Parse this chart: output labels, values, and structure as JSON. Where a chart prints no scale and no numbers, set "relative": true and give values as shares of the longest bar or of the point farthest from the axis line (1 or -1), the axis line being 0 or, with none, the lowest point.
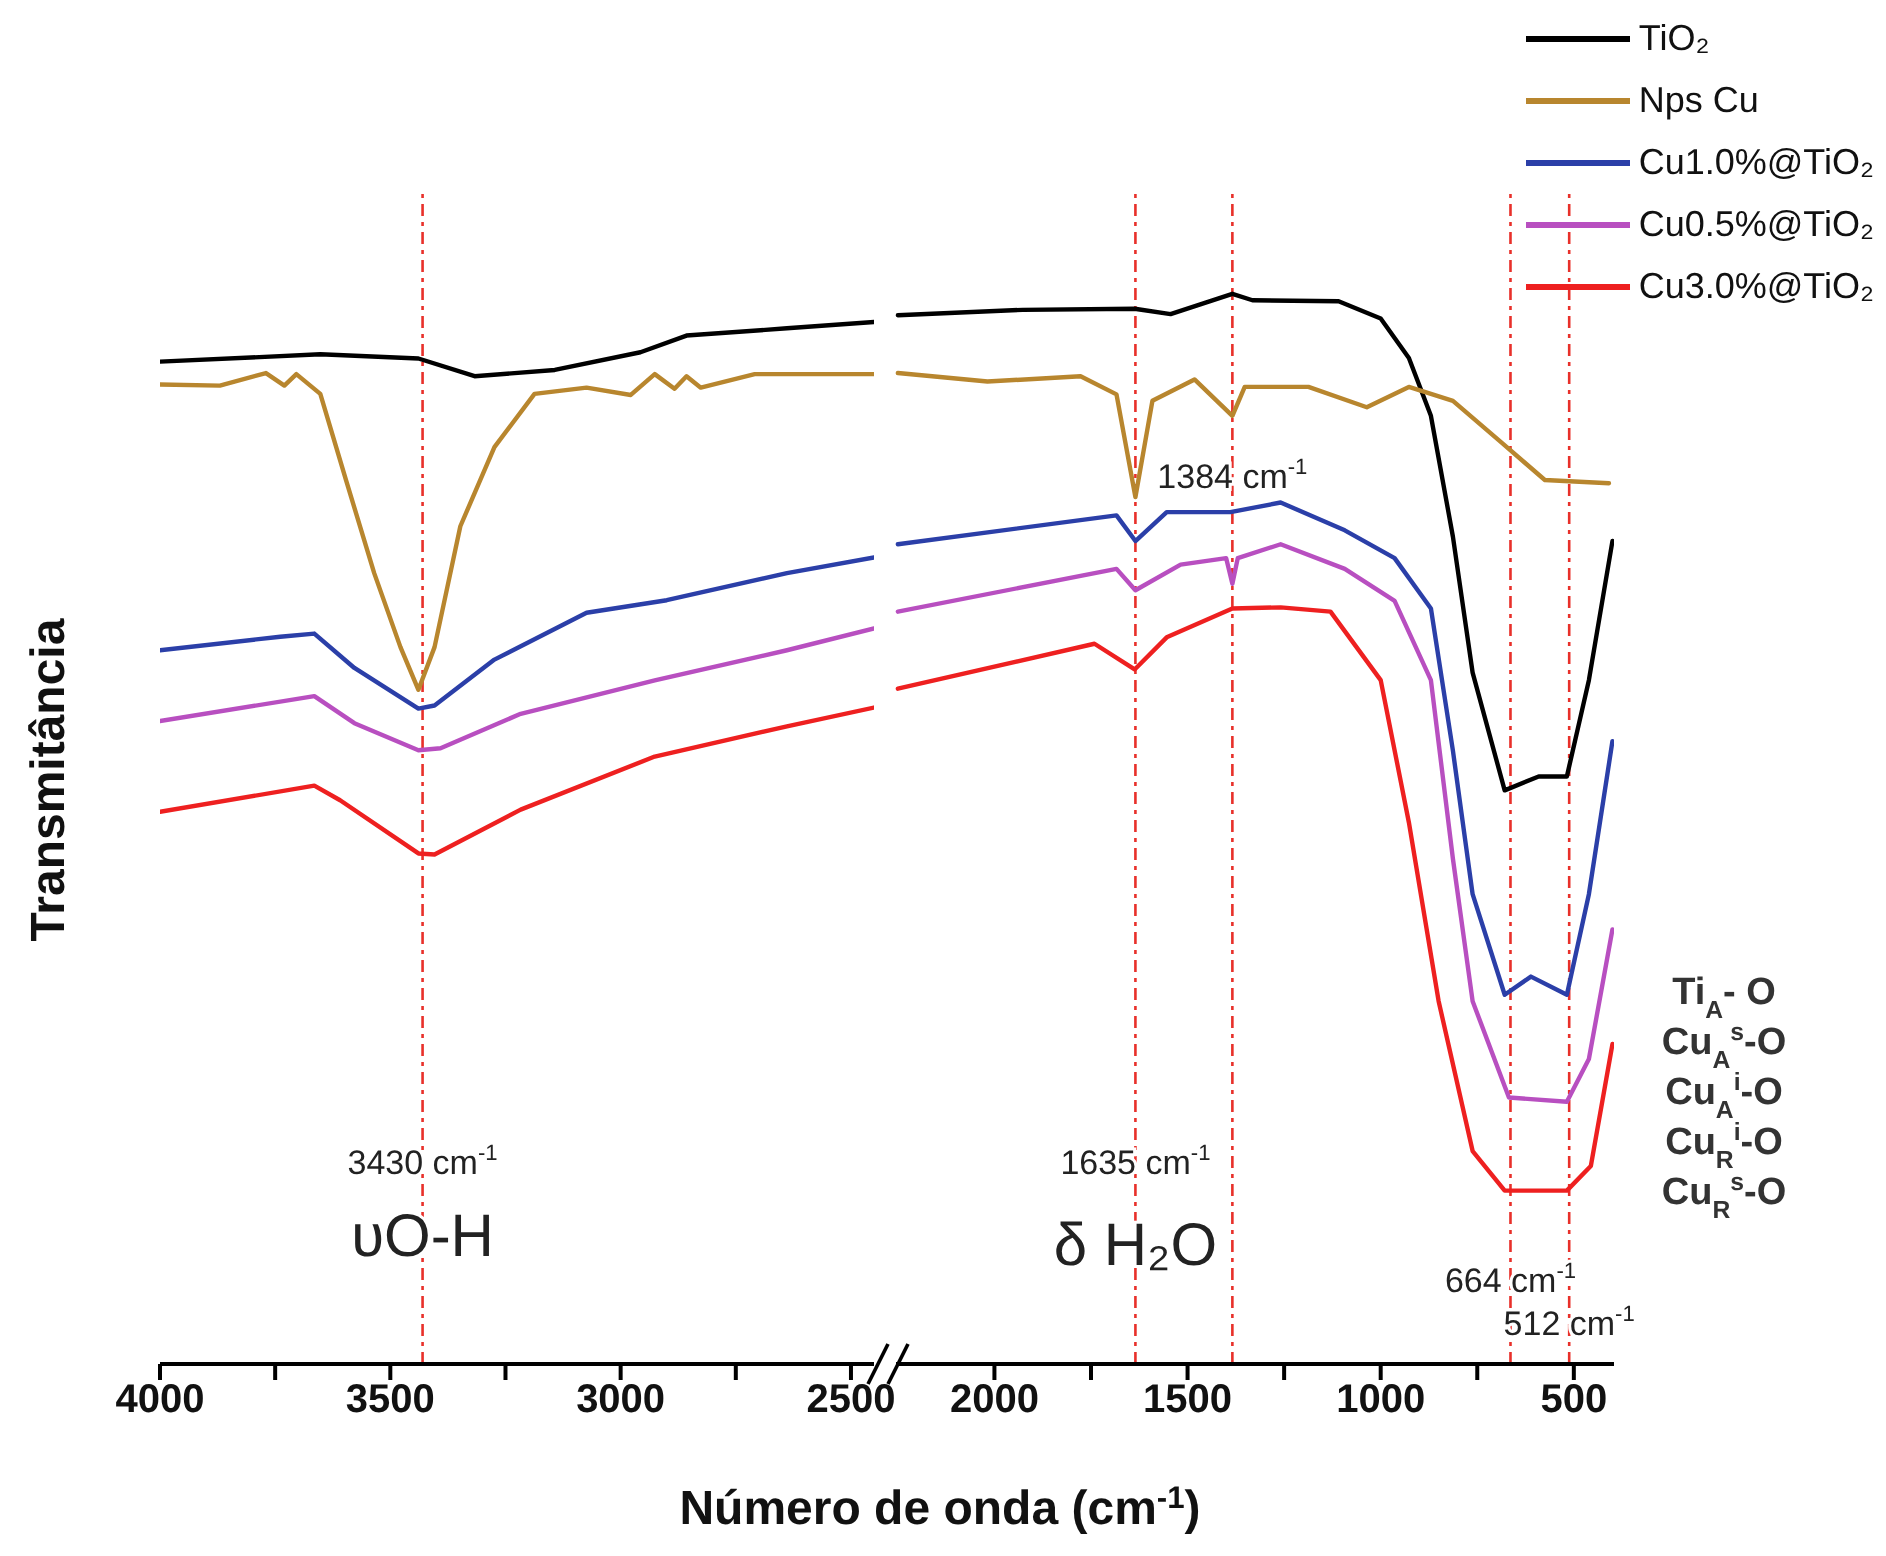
{
  "chart_data": [
    {
      "type": "line",
      "relative": true,
      "ylabel": "Transmitância",
      "xlabel": "Número de onda (cm$^{-1}$)",
      "marker": "none",
      "xlim": [
        4000,
        2450
      ],
      "xticks": [
        4000,
        {
          "value": 3750,
          "label": null
        },
        3500,
        {
          "value": 3250,
          "label": null
        },
        3000,
        {
          "value": 2750,
          "label": null
        },
        2500
      ],
      "series": [
        {
          "color": "#000000",
          "x": [
            4000,
            3652,
            3439,
            3317,
            3143,
            2957,
            2857,
            2639,
            2450
          ],
          "values": [
            0.962,
            0.969,
            0.965,
            0.948,
            0.954,
            0.971,
            0.987,
            0.994,
            1.0
          ]
        },
        {
          "color": "#b8862e",
          "x": [
            4000,
            3870,
            3770,
            3730,
            3704,
            3652,
            3596,
            3535,
            3478,
            3439,
            3404,
            3348,
            3274,
            3187,
            3074,
            2978,
            2926,
            2883,
            2857,
            2826,
            2709,
            2450
          ],
          "values": [
            0.94,
            0.939,
            0.951,
            0.939,
            0.95,
            0.931,
            0.848,
            0.759,
            0.688,
            0.647,
            0.688,
            0.804,
            0.88,
            0.931,
            0.937,
            0.93,
            0.95,
            0.936,
            0.948,
            0.937,
            0.95,
            0.95
          ]
        },
        {
          "color": "#2b3fa8",
          "x": [
            4000,
            3739,
            3665,
            3578,
            3439,
            3404,
            3274,
            3074,
            2900,
            2639,
            2450
          ],
          "values": [
            0.685,
            0.698,
            0.701,
            0.668,
            0.629,
            0.632,
            0.676,
            0.721,
            0.733,
            0.759,
            0.774
          ]
        },
        {
          "color": "#b84fc0",
          "x": [
            4000,
            3665,
            3578,
            3439,
            3391,
            3217,
            2926,
            2639,
            2450
          ],
          "values": [
            0.617,
            0.641,
            0.615,
            0.589,
            0.591,
            0.624,
            0.656,
            0.685,
            0.706
          ]
        },
        {
          "color": "#ee2020",
          "x": [
            4000,
            3665,
            3609,
            3439,
            3404,
            3217,
            2926,
            2639,
            2450
          ],
          "values": [
            0.53,
            0.555,
            0.541,
            0.49,
            0.489,
            0.532,
            0.583,
            0.612,
            0.63
          ]
        }
      ],
      "ref_lines": [
        {
          "axis": "x",
          "value": 3430,
          "color": "#e8302a",
          "line_style": "dashed"
        }
      ],
      "annotations": [
        {
          "text": "3430 cm$^{-1}$",
          "x": 3430,
          "y": 0.19
        },
        {
          "text": "υO-H",
          "x": 3430,
          "y": 0.119
        }
      ]
    },
    {
      "type": "line",
      "relative": true,
      "marker": "none",
      "legend": "top right",
      "xlim": [
        2260,
        396
      ],
      "xticks": [
        2000,
        {
          "value": 1750,
          "label": null
        },
        1500,
        {
          "value": 1250,
          "label": null
        },
        1000,
        {
          "value": 750,
          "label": null
        },
        500
      ],
      "series": [
        {
          "name": "TiO₂",
          "color": "#000000",
          "x": [
            2250,
            1927,
            1637,
            1544,
            1384,
            1332,
            1109,
            1000,
            927,
            870,
            813,
            762,
            679,
            591,
            518,
            461,
            400
          ],
          "values": [
            0.98,
            0.985,
            0.986,
            0.981,
            1.0,
            0.994,
            0.993,
            0.977,
            0.94,
            0.886,
            0.773,
            0.646,
            0.536,
            0.549,
            0.549,
            0.639,
            0.769
          ]
        },
        {
          "name": "Nps Cu",
          "color": "#b8862e",
          "x": [
            2250,
            2018,
            1777,
            1684,
            1635,
            1591,
            1482,
            1384,
            1352,
            1187,
            1036,
            927,
            813,
            684,
            575,
            409
          ],
          "values": [
            0.926,
            0.918,
            0.923,
            0.906,
            0.81,
            0.9,
            0.92,
            0.886,
            0.913,
            0.913,
            0.894,
            0.913,
            0.9,
            0.86,
            0.826,
            0.823
          ]
        },
        {
          "name": "Cu1.0%@TiO₂",
          "color": "#2b3fa8",
          "x": [
            2250,
            1684,
            1635,
            1554,
            1389,
            1259,
            1093,
            964,
            870,
            813,
            762,
            679,
            611,
            518,
            461,
            400
          ],
          "values": [
            0.766,
            0.793,
            0.769,
            0.796,
            0.796,
            0.805,
            0.779,
            0.753,
            0.706,
            0.573,
            0.439,
            0.345,
            0.362,
            0.345,
            0.439,
            0.582
          ]
        },
        {
          "name": "Cu0.5%@TiO₂",
          "color": "#b84fc0",
          "x": [
            2250,
            1684,
            1635,
            1518,
            1400,
            1384,
            1370,
            1259,
            1093,
            964,
            870,
            813,
            762,
            668,
            518,
            461,
            400
          ],
          "values": [
            0.703,
            0.743,
            0.723,
            0.747,
            0.753,
            0.729,
            0.753,
            0.766,
            0.743,
            0.713,
            0.639,
            0.472,
            0.339,
            0.249,
            0.245,
            0.285,
            0.406
          ]
        },
        {
          "name": "Cu3.0%@TiO₂",
          "color": "#ee2020",
          "x": [
            2250,
            1741,
            1637,
            1554,
            1384,
            1259,
            1130,
            1000,
            927,
            850,
            762,
            679,
            518,
            456,
            400
          ],
          "values": [
            0.631,
            0.673,
            0.649,
            0.679,
            0.706,
            0.707,
            0.703,
            0.639,
            0.506,
            0.339,
            0.199,
            0.162,
            0.162,
            0.185,
            0.299
          ]
        }
      ],
      "ref_lines": [
        {
          "axis": "x",
          "value": 1635,
          "color": "#e8302a",
          "line_style": "dashed"
        },
        {
          "axis": "x",
          "value": 1384,
          "color": "#e8302a",
          "line_style": "dashed"
        },
        {
          "axis": "x",
          "value": 664,
          "color": "#e8302a",
          "line_style": "dashed"
        },
        {
          "axis": "x",
          "value": 512,
          "color": "#e8302a",
          "line_style": "dashed"
        }
      ],
      "annotations": [
        {
          "text": "1635 cm$^{-1}$",
          "x": 1635,
          "y": 0.185
        },
        {
          "text": "δ H₂O",
          "x": 1635,
          "y": 0.107
        },
        {
          "text": "1384 cm$^{-1}$",
          "x": 1384,
          "y": 0.826
        },
        {
          "text": "664 cm$^{-1}$",
          "x": 664,
          "y": 0.075
        },
        {
          "text": "512 cm$^{-1}$",
          "x": 512,
          "y": 0.035
        },
        "Ti$_{A}$- O",
        "Cu$_{A}$$^{s}$-O",
        "Cu$_{A}$$^{i}$-O",
        "Cu$_{R}$$^{i}$-O",
        "Cu$_{R}$$^{s}$-O"
      ]
    }
  ]
}
